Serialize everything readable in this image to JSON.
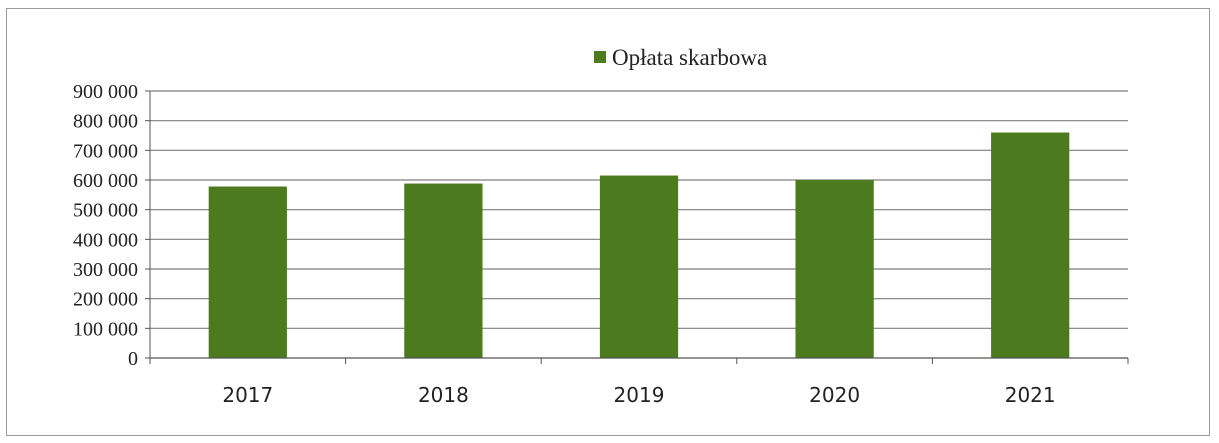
{
  "chart_data": {
    "type": "bar",
    "categories": [
      "2017",
      "2018",
      "2019",
      "2020",
      "2021"
    ],
    "series": [
      {
        "name": "Opłata skarbowa",
        "values": [
          578000,
          588000,
          615000,
          600000,
          760000
        ]
      }
    ],
    "yticks": [
      "0",
      "100 000",
      "200 000",
      "300 000",
      "400 000",
      "500 000",
      "600 000",
      "700 000",
      "800 000",
      "900 000"
    ],
    "ylim": [
      0,
      900000
    ],
    "ystep": 100000,
    "grid": true,
    "legend_position": "top",
    "colors": {
      "bar": "#4b7a1f",
      "gridline": "#7f7f7f",
      "axis": "#555555"
    }
  }
}
